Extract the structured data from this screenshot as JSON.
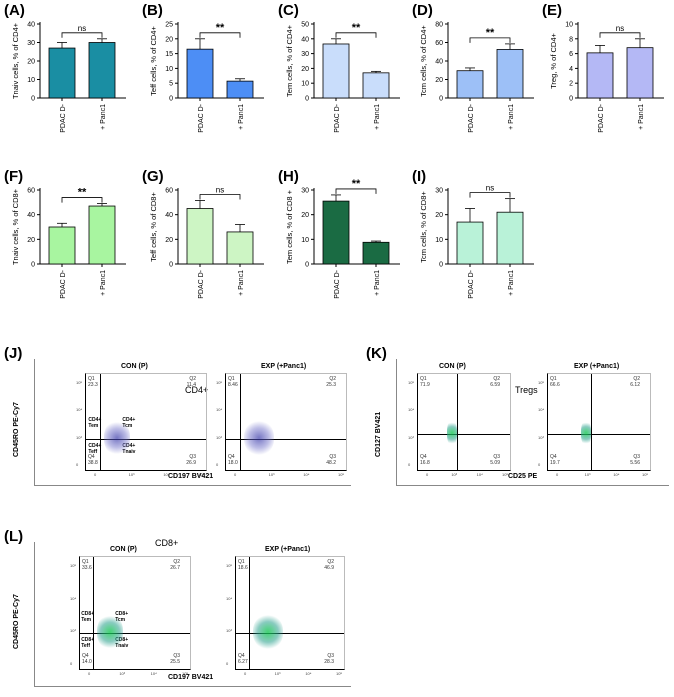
{
  "chart_data": [
    {
      "id": "A",
      "type": "bar",
      "panel_label": "(A)",
      "ylabel": "Tnaiv cells, % of CD4+",
      "categories": [
        "PDAC D-",
        "+ Panc1"
      ],
      "values": [
        27,
        30
      ],
      "errors": [
        3,
        2
      ],
      "ylim": [
        0,
        40
      ],
      "yticks": [
        0,
        10,
        20,
        30,
        40
      ],
      "significance": "ns",
      "colors": [
        "#1a8ea3",
        "#1a8ea3"
      ]
    },
    {
      "id": "B",
      "type": "bar",
      "panel_label": "(B)",
      "ylabel": "Teff cells, % of CD4+",
      "categories": [
        "PDAC D-",
        "+ Panc1"
      ],
      "values": [
        16.5,
        5.7
      ],
      "errors": [
        3.5,
        0.8
      ],
      "ylim": [
        0,
        25
      ],
      "yticks": [
        0,
        5,
        10,
        15,
        20,
        25
      ],
      "significance": "**",
      "colors": [
        "#4d8ef5",
        "#4d8ef5"
      ]
    },
    {
      "id": "C",
      "type": "bar",
      "panel_label": "(C)",
      "ylabel": "Tem cells, % of CD4+",
      "categories": [
        "PDAC D-",
        "+ Panc1"
      ],
      "values": [
        36.5,
        17
      ],
      "errors": [
        3.5,
        1
      ],
      "ylim": [
        0,
        50
      ],
      "yticks": [
        0,
        10,
        20,
        30,
        40,
        50
      ],
      "significance": "**",
      "colors": [
        "#c9ddfb",
        "#c9ddfb"
      ]
    },
    {
      "id": "D",
      "type": "bar",
      "panel_label": "(D)",
      "ylabel": "Tcm cells, % of CD4+",
      "categories": [
        "PDAC D-",
        "+ Panc1"
      ],
      "values": [
        29.5,
        52.5
      ],
      "errors": [
        3,
        6
      ],
      "ylim": [
        0,
        80
      ],
      "yticks": [
        0,
        20,
        40,
        60,
        80
      ],
      "significance": "**",
      "colors": [
        "#9dc0f7",
        "#9dc0f7"
      ]
    },
    {
      "id": "E",
      "type": "bar",
      "panel_label": "(E)",
      "ylabel": "Treg, % of CD4+",
      "categories": [
        "PDAC D-",
        "+ Panc1"
      ],
      "values": [
        6.1,
        6.8
      ],
      "errors": [
        1,
        1.2
      ],
      "ylim": [
        0,
        10
      ],
      "yticks": [
        0,
        2,
        4,
        6,
        8,
        10
      ],
      "significance": "ns",
      "colors": [
        "#b4b8f5",
        "#b4b8f5"
      ]
    },
    {
      "id": "F",
      "type": "bar",
      "panel_label": "(F)",
      "ylabel": "Tnaiv cells, % of CD8+",
      "categories": [
        "PDAC D-",
        "+ Panc1"
      ],
      "values": [
        30,
        47
      ],
      "errors": [
        3,
        2
      ],
      "ylim": [
        0,
        60
      ],
      "yticks": [
        0,
        20,
        40,
        60
      ],
      "significance": "**",
      "colors": [
        "#a8f5a0",
        "#a8f5a0"
      ]
    },
    {
      "id": "G",
      "type": "bar",
      "panel_label": "(G)",
      "ylabel": "Teff cells, % of CD8+",
      "categories": [
        "PDAC D-",
        "+ Panc1"
      ],
      "values": [
        45,
        26
      ],
      "errors": [
        6.5,
        6
      ],
      "ylim": [
        0,
        60
      ],
      "yticks": [
        0,
        20,
        40,
        60
      ],
      "significance": "ns",
      "colors": [
        "#cdf5c4",
        "#cdf5c4"
      ]
    },
    {
      "id": "H",
      "type": "bar",
      "panel_label": "(H)",
      "ylabel": "Tem cells, % of CD8 +",
      "categories": [
        "PDAC D-",
        "+ Panc1"
      ],
      "values": [
        25.5,
        8.8
      ],
      "errors": [
        2.5,
        0.5
      ],
      "ylim": [
        0,
        30
      ],
      "yticks": [
        0,
        10,
        20,
        30
      ],
      "significance": "**",
      "colors": [
        "#1a6b43",
        "#1a6b43"
      ]
    },
    {
      "id": "I",
      "type": "bar",
      "panel_label": "(I)",
      "ylabel": "Tcm cells, % of CD8+",
      "categories": [
        "PDAC D-",
        "+ Panc1"
      ],
      "values": [
        17,
        21
      ],
      "errors": [
        5.5,
        5.5
      ],
      "ylim": [
        0,
        30
      ],
      "yticks": [
        0,
        10,
        20,
        30
      ],
      "significance": "ns",
      "colors": [
        "#b9f2d8",
        "#b9f2d8"
      ]
    }
  ],
  "flow_panels": [
    {
      "id": "J",
      "panel_label": "(J)",
      "population": "CD4+",
      "ylabel": "CD45RO PE-Cy7",
      "xlabel": "CD197 BV421",
      "plots": [
        {
          "title": "CON (P)",
          "q": [
            {
              "n": "Q1",
              "v": "23.3"
            },
            {
              "n": "Q2",
              "v": "11.4"
            },
            {
              "n": "Q3",
              "v": "26.9"
            },
            {
              "n": "Q4",
              "v": "38.8"
            }
          ],
          "pops": [
            "CD4+ Tem",
            "CD4+ Tcm",
            "CD4+ Teff",
            "CD4+ Tnaiv"
          ]
        },
        {
          "title": "EXP (+Panc1)",
          "q": [
            {
              "n": "Q1",
              "v": "8.46"
            },
            {
              "n": "Q2",
              "v": "25.3"
            },
            {
              "n": "Q3",
              "v": "48.2"
            },
            {
              "n": "Q4",
              "v": "18.0"
            }
          ],
          "pops": []
        }
      ]
    },
    {
      "id": "K",
      "panel_label": "(K)",
      "population": "Tregs",
      "ylabel": "CD127 BV421",
      "xlabel": "CD25 PE",
      "plots": [
        {
          "title": "CON (P)",
          "q": [
            {
              "n": "Q1",
              "v": "71.9"
            },
            {
              "n": "Q2",
              "v": "6.59"
            },
            {
              "n": "Q3",
              "v": "5.09"
            },
            {
              "n": "Q4",
              "v": "16.8"
            }
          ],
          "pops": []
        },
        {
          "title": "EXP (+Panc1)",
          "q": [
            {
              "n": "Q1",
              "v": "66.6"
            },
            {
              "n": "Q2",
              "v": "6.12"
            },
            {
              "n": "Q3",
              "v": "5.56"
            },
            {
              "n": "Q4",
              "v": "19.7"
            }
          ],
          "pops": []
        }
      ]
    },
    {
      "id": "L",
      "panel_label": "(L)",
      "population": "CD8+",
      "ylabel": "CD45RO PE-Cy7",
      "xlabel": "CD197 BV421",
      "plots": [
        {
          "title": "CON (P)",
          "q": [
            {
              "n": "Q1",
              "v": "33.6"
            },
            {
              "n": "Q2",
              "v": "26.7"
            },
            {
              "n": "Q3",
              "v": "25.5"
            },
            {
              "n": "Q4",
              "v": "14.0"
            }
          ],
          "pops": [
            "CD8+ Tem",
            "CD8+ Tcm",
            "CD8+ Teff",
            "CD8+ Tnaiv"
          ]
        },
        {
          "title": "EXP (+Panc1)",
          "q": [
            {
              "n": "Q1",
              "v": "18.6"
            },
            {
              "n": "Q2",
              "v": "46.9"
            },
            {
              "n": "Q3",
              "v": "28.3"
            },
            {
              "n": "Q4",
              "v": "6.27"
            }
          ],
          "pops": []
        }
      ]
    }
  ],
  "flow_axis_ticks": [
    "0",
    "10³",
    "10⁴",
    "10⁵"
  ]
}
